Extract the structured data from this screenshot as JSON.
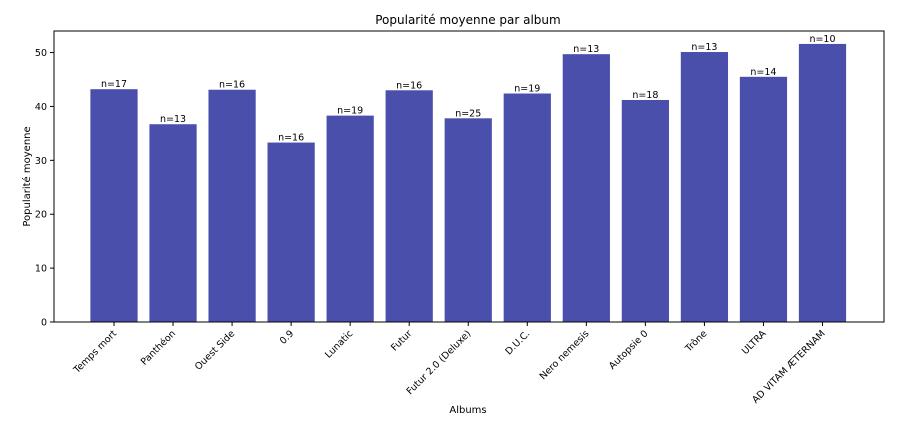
{
  "chart_data": {
    "type": "bar",
    "title": "Popularité moyenne par album",
    "xlabel": "Albums",
    "ylabel": "Popularité moyenne",
    "ylim": [
      0,
      54
    ],
    "yticks": [
      0,
      10,
      20,
      30,
      40,
      50
    ],
    "grid": false,
    "bar_color": "#4b4fac",
    "categories": [
      "Temps mort",
      "Panthéon",
      "Ouest Side",
      "0.9",
      "Lunatic",
      "Futur",
      "Futur 2.0 (Deluxe)",
      "D.U.C.",
      "Nero nemesis",
      "Autopsie 0",
      "Trône",
      "ULTRA",
      "AD VITAM ÆTERNAM"
    ],
    "values": [
      43.2,
      36.7,
      43.1,
      33.3,
      38.3,
      43.0,
      37.8,
      42.4,
      49.7,
      41.2,
      50.1,
      45.5,
      51.6
    ],
    "bar_labels": [
      "n=17",
      "n=13",
      "n=16",
      "n=16",
      "n=19",
      "n=16",
      "n=25",
      "n=19",
      "n=13",
      "n=18",
      "n=13",
      "n=14",
      "n=10"
    ]
  }
}
